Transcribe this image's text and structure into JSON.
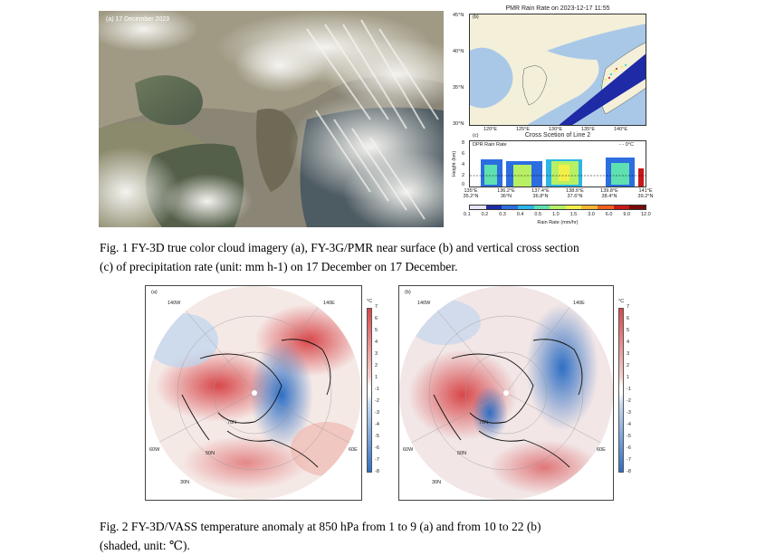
{
  "fig1": {
    "panel_a_label": "(a)  17 December 2023",
    "panel_b_label": "(b)",
    "panel_b_title": "PMR Rain Rate on 2023-12-17 11:55",
    "panel_b_lat_ticks": [
      "45°N",
      "40°N",
      "35°N",
      "30°N"
    ],
    "panel_b_lon_ticks": [
      "120°E",
      "125°E",
      "130°E",
      "135°E",
      "140°E"
    ],
    "panel_c_label": "(c)",
    "panel_c_title": "Cross Scetion of Line 2",
    "panel_c_series": "DPR Rain Rate",
    "panel_c_legend": "0°C",
    "panel_c_ylabel": "Height (km)",
    "panel_c_y_ticks": [
      "8",
      "6",
      "4",
      "2",
      "0"
    ],
    "panel_c_x_ticks": [
      {
        "lon": "135°E",
        "lat": "35.2°N"
      },
      {
        "lon": "136.2°E",
        "lat": "36°N"
      },
      {
        "lon": "137.4°E",
        "lat": "36.8°N"
      },
      {
        "lon": "138.6°E",
        "lat": "37.6°N"
      },
      {
        "lon": "139.8°E",
        "lat": "38.4°N"
      },
      {
        "lon": "141°E",
        "lat": "39.2°N"
      }
    ],
    "colorbar_ticks": [
      "0.1",
      "0.2",
      "0.3",
      "0.4",
      "0.5",
      "1.0",
      "1.5",
      "3.0",
      "6.0",
      "9.0",
      "12.0"
    ],
    "colorbar_label": "Rain Rate (mm/hr)",
    "caption_line1": "Fig. 1 FY-3D true color cloud imagery (a), FY-3G/PMR near surface (b) and vertical cross section",
    "caption_line2": "(c) of precipitation rate (unit: mm h-1) on 17 December on 17 December."
  },
  "fig2": {
    "panel_a_label": "(a)",
    "panel_b_label": "(b)",
    "lon_labels": {
      "top_left": "140W",
      "top_right": "140E",
      "left": "60W",
      "right": "60E"
    },
    "lat_labels": [
      "70N",
      "50N",
      "30N"
    ],
    "colorbar_unit": "°C",
    "colorbar_ticks": [
      "7",
      "6",
      "5",
      "4",
      "3",
      "2",
      "1",
      "-1",
      "-2",
      "-3",
      "-4",
      "-5",
      "-6",
      "-7",
      "-8"
    ],
    "caption_line1": "Fig. 2 FY-3D/VASS temperature anomaly at 850 hPa from 1 to 9 (a) and from 10 to 22 (b)",
    "caption_line2": "(shaded, unit:  ℃)."
  },
  "colors": {
    "warm": "#d8474a",
    "cold": "#2f6fc4",
    "rain_colormap": [
      "#e6e6ff",
      "#1f2aa6",
      "#2c6de0",
      "#2bb6e8",
      "#5fe0b0",
      "#b8f064",
      "#f4f04a",
      "#f9b530",
      "#f06020",
      "#c81818",
      "#7a0a0a"
    ]
  }
}
